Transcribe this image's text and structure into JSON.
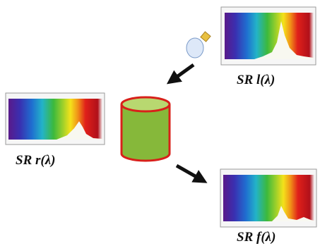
{
  "nodes": [
    {
      "label": "SR l(λ)"
    },
    {
      "label": "SR r(λ)"
    },
    {
      "label": "SR f(λ)"
    }
  ]
}
